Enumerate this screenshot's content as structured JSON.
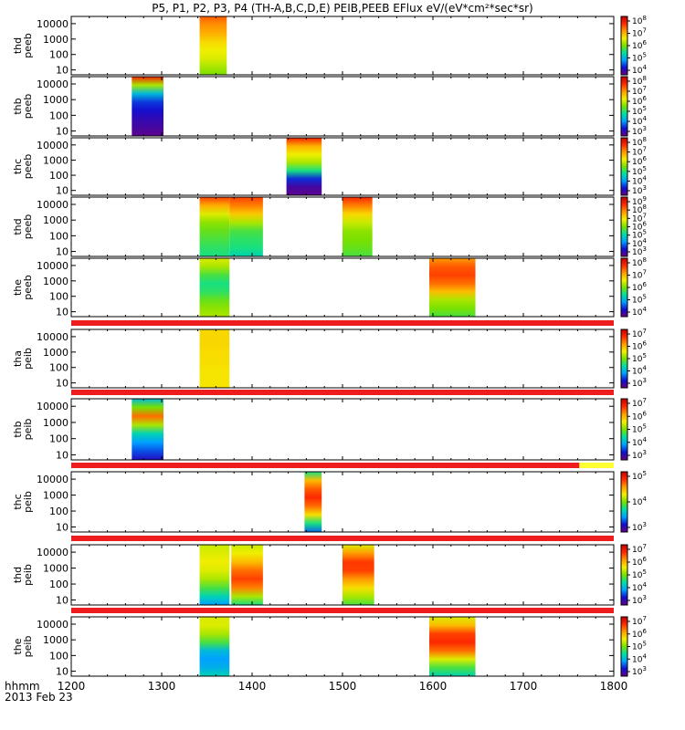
{
  "chart_data": {
    "type": "heatmap",
    "title": "P5, P1, P2, P3, P4 (TH-A,B,C,D,E) PEIB,PEEB EFlux eV/(eV*cm²*sec*sr)",
    "x_axis": {
      "label": "hhmm",
      "date": "2013 Feb 23",
      "ticks": [
        "1200",
        "1300",
        "1400",
        "1500",
        "1600",
        "1700",
        "1800"
      ],
      "range": [
        1200,
        1800
      ]
    },
    "colormap": [
      "#6a0080",
      "#1010d0",
      "#00a0ff",
      "#00e0a0",
      "#7ae000",
      "#f5ef00",
      "#ff9a00",
      "#ff2a00",
      "#c00000"
    ],
    "status_colors": {
      "red": "#ee1c1c",
      "yellow": "#ffff33",
      "black": "#000000"
    },
    "panels": [
      {
        "ylabel": [
          "thd",
          "peeb"
        ],
        "y_ticks": [
          "10",
          "100",
          "1000",
          "10000"
        ],
        "y_exponents": [
          1,
          2,
          3,
          4
        ],
        "colorbar_ticks": [
          [
            "10",
            "4"
          ],
          [
            "10",
            "5"
          ],
          [
            "10",
            "6"
          ],
          [
            "10",
            "7"
          ],
          [
            "10",
            "8"
          ]
        ],
        "blocks": [
          {
            "t0": 1342,
            "t1": 1372,
            "profile": [
              0.5,
              0.55,
              0.6,
              0.62,
              0.66,
              0.72,
              0.76,
              0.82
            ]
          }
        ]
      },
      {
        "ylabel": [
          "thb",
          "peeb"
        ],
        "y_ticks": [
          "10",
          "100",
          "1000",
          "10000"
        ],
        "y_exponents": [
          1,
          2,
          3,
          4
        ],
        "colorbar_ticks": [
          [
            "10",
            "3"
          ],
          [
            "10",
            "4"
          ],
          [
            "10",
            "5"
          ],
          [
            "10",
            "6"
          ],
          [
            "10",
            "7"
          ],
          [
            "10",
            "8"
          ]
        ],
        "blocks": [
          {
            "t0": 1267,
            "t1": 1302,
            "profile": [
              0.02,
              0.05,
              0.08,
              0.12,
              0.16,
              0.3,
              0.55,
              0.9
            ]
          }
        ]
      },
      {
        "ylabel": [
          "thc",
          "peeb"
        ],
        "y_ticks": [
          "10",
          "100",
          "1000",
          "10000"
        ],
        "y_exponents": [
          1,
          2,
          3,
          4
        ],
        "colorbar_ticks": [
          [
            "10",
            "3"
          ],
          [
            "10",
            "4"
          ],
          [
            "10",
            "5"
          ],
          [
            "10",
            "6"
          ],
          [
            "10",
            "7"
          ],
          [
            "10",
            "8"
          ]
        ],
        "blocks": [
          {
            "t0": 1438,
            "t1": 1477,
            "profile": [
              0.02,
              0.05,
              0.15,
              0.4,
              0.55,
              0.62,
              0.72,
              0.9
            ]
          }
        ]
      },
      {
        "ylabel": [
          "thd",
          "peeb"
        ],
        "y_ticks": [
          "10",
          "100",
          "1000",
          "10000"
        ],
        "y_exponents": [
          1,
          2,
          3,
          4
        ],
        "colorbar_ticks": [
          [
            "10",
            "3"
          ],
          [
            "10",
            "4"
          ],
          [
            "10",
            "5"
          ],
          [
            "10",
            "6"
          ],
          [
            "10",
            "7"
          ],
          [
            "10",
            "8"
          ],
          [
            "10",
            "9"
          ]
        ],
        "blocks": [
          {
            "t0": 1342,
            "t1": 1375,
            "profile": [
              0.4,
              0.42,
              0.45,
              0.48,
              0.52,
              0.6,
              0.72,
              0.85
            ]
          },
          {
            "t0": 1375,
            "t1": 1412,
            "profile": [
              0.35,
              0.4,
              0.42,
              0.45,
              0.55,
              0.68,
              0.78,
              0.85
            ]
          },
          {
            "t0": 1500,
            "t1": 1533,
            "profile": [
              0.45,
              0.48,
              0.5,
              0.52,
              0.58,
              0.66,
              0.78,
              0.88
            ]
          }
        ]
      },
      {
        "ylabel": [
          "the",
          "peeb"
        ],
        "y_ticks": [
          "10",
          "100",
          "1000",
          "10000"
        ],
        "y_exponents": [
          1,
          2,
          3,
          4
        ],
        "colorbar_ticks": [
          [
            "10",
            "4"
          ],
          [
            "10",
            "5"
          ],
          [
            "10",
            "6"
          ],
          [
            "10",
            "7"
          ],
          [
            "10",
            "8"
          ]
        ],
        "blocks": [
          {
            "t0": 1342,
            "t1": 1375,
            "profile": [
              0.55,
              0.52,
              0.48,
              0.42,
              0.4,
              0.45,
              0.55,
              0.6
            ]
          },
          {
            "t0": 1596,
            "t1": 1647,
            "profile": [
              0.45,
              0.5,
              0.55,
              0.7,
              0.8,
              0.85,
              0.82,
              0.75
            ]
          }
        ]
      },
      {
        "ylabel": [
          "tha",
          "peib"
        ],
        "y_ticks": [
          "10",
          "100",
          "1000",
          "10000"
        ],
        "y_exponents": [
          1,
          2,
          3,
          4
        ],
        "colorbar_ticks": [
          [
            "10",
            "3"
          ],
          [
            "10",
            "4"
          ],
          [
            "10",
            "5"
          ],
          [
            "10",
            "6"
          ],
          [
            "10",
            "7"
          ]
        ],
        "status_bar": [
          {
            "t0": 1200,
            "t1": 1800,
            "color": "red"
          }
        ],
        "blocks": [
          {
            "t0": 1342,
            "t1": 1375,
            "profile": [
              0.64,
              0.64,
              0.64,
              0.65,
              0.65,
              0.66,
              0.66,
              0.66
            ]
          }
        ]
      },
      {
        "ylabel": [
          "thb",
          "peib"
        ],
        "y_ticks": [
          "10",
          "100",
          "1000",
          "10000"
        ],
        "y_exponents": [
          1,
          2,
          3,
          4
        ],
        "colorbar_ticks": [
          [
            "10",
            "3"
          ],
          [
            "10",
            "4"
          ],
          [
            "10",
            "5"
          ],
          [
            "10",
            "6"
          ],
          [
            "10",
            "7"
          ]
        ],
        "status_bar": [
          {
            "t0": 1200,
            "t1": 1800,
            "color": "red"
          }
        ],
        "blocks": [
          {
            "t0": 1267,
            "t1": 1302,
            "profile": [
              0.1,
              0.18,
              0.25,
              0.35,
              0.55,
              0.8,
              0.5,
              0.3
            ]
          }
        ]
      },
      {
        "ylabel": [
          "thc",
          "peib"
        ],
        "y_ticks": [
          "10",
          "100",
          "1000",
          "10000"
        ],
        "y_exponents": [
          1,
          2,
          3,
          4
        ],
        "colorbar_ticks": [
          [
            "10",
            "3"
          ],
          [
            "10",
            "4"
          ],
          [
            "10",
            "5"
          ]
        ],
        "status_bar": [
          {
            "t0": 1200,
            "t1": 1762,
            "color": "red"
          },
          {
            "t0": 1762,
            "t1": 1800,
            "color": "yellow"
          }
        ],
        "blocks": [
          {
            "t0": 1458,
            "t1": 1477,
            "profile": [
              0.2,
              0.4,
              0.65,
              0.8,
              0.88,
              0.82,
              0.7,
              0.4
            ]
          }
        ]
      },
      {
        "ylabel": [
          "thd",
          "peib"
        ],
        "y_ticks": [
          "10",
          "100",
          "1000",
          "10000"
        ],
        "y_exponents": [
          1,
          2,
          3,
          4
        ],
        "colorbar_ticks": [
          [
            "10",
            "3"
          ],
          [
            "10",
            "4"
          ],
          [
            "10",
            "5"
          ],
          [
            "10",
            "6"
          ],
          [
            "10",
            "7"
          ]
        ],
        "status_bar": [
          {
            "t0": 1200,
            "t1": 1800,
            "color": "red"
          }
        ],
        "blocks": [
          {
            "t0": 1342,
            "t1": 1375,
            "profile": [
              0.25,
              0.35,
              0.45,
              0.55,
              0.6,
              0.62,
              0.6,
              0.58
            ]
          },
          {
            "t0": 1377,
            "t1": 1412,
            "profile": [
              0.4,
              0.55,
              0.78,
              0.85,
              0.8,
              0.7,
              0.62,
              0.58
            ]
          },
          {
            "t0": 1500,
            "t1": 1535,
            "profile": [
              0.45,
              0.55,
              0.65,
              0.75,
              0.85,
              0.86,
              0.75,
              0.6
            ]
          }
        ]
      },
      {
        "ylabel": [
          "the",
          "peib"
        ],
        "y_ticks": [
          "10",
          "100",
          "1000",
          "10000"
        ],
        "y_exponents": [
          1,
          2,
          3,
          4
        ],
        "colorbar_ticks": [
          [
            "10",
            "3"
          ],
          [
            "10",
            "4"
          ],
          [
            "10",
            "5"
          ],
          [
            "10",
            "6"
          ],
          [
            "10",
            "7"
          ]
        ],
        "status_bar": [
          {
            "t0": 1200,
            "t1": 1800,
            "color": "red"
          }
        ],
        "blocks": [
          {
            "t0": 1342,
            "t1": 1375,
            "profile": [
              0.35,
              0.28,
              0.25,
              0.3,
              0.45,
              0.55,
              0.6,
              0.6
            ]
          },
          {
            "t0": 1596,
            "t1": 1647,
            "profile": [
              0.35,
              0.45,
              0.6,
              0.8,
              0.88,
              0.85,
              0.7,
              0.6
            ]
          }
        ]
      }
    ]
  }
}
